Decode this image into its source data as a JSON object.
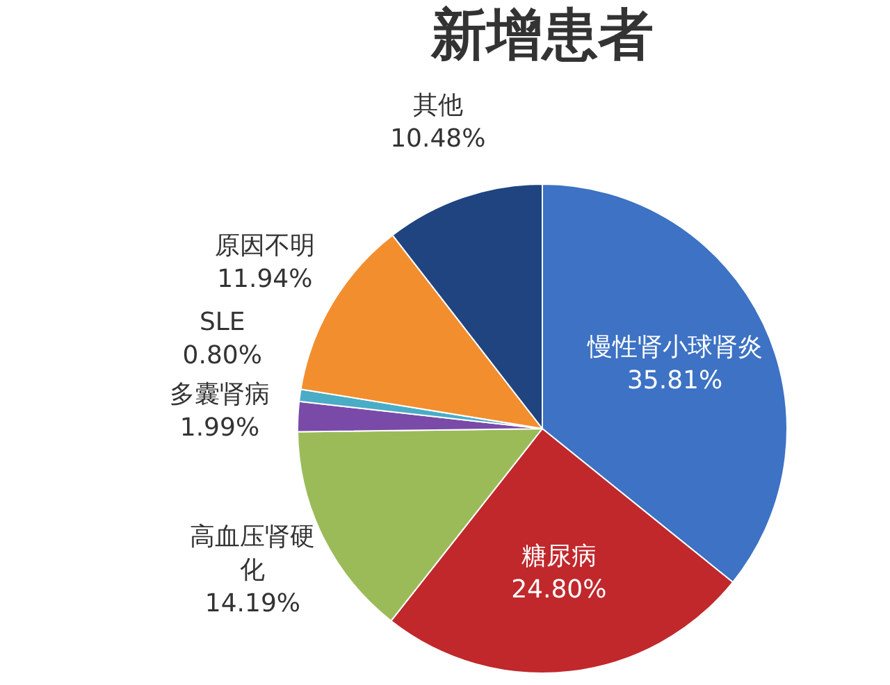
{
  "chart_data": {
    "type": "pie",
    "title": "新增患者",
    "categories": [
      "慢性肾小球肾炎",
      "糖尿病",
      "高血压肾硬化",
      "多囊肾病",
      "SLE",
      "原因不明",
      "其他"
    ],
    "values": [
      35.81,
      24.8,
      14.19,
      1.99,
      0.8,
      11.94,
      10.48
    ],
    "colors": [
      "#3d72c4",
      "#c0282c",
      "#9bbb59",
      "#7a4aa8",
      "#4bacc6",
      "#f28e2e",
      "#1f4480"
    ],
    "value_labels": [
      "35.81%",
      "24.80%",
      "14.19%",
      "1.99%",
      "0.80%",
      "11.94%",
      "10.48%"
    ],
    "legend": false
  }
}
